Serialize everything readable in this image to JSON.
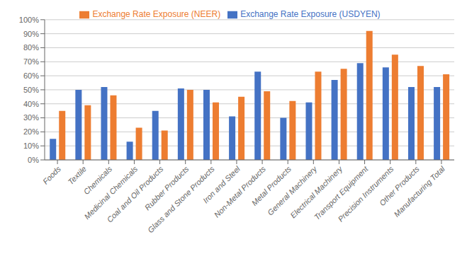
{
  "chart_data": {
    "type": "bar",
    "categories": [
      "Foods",
      "Textile",
      "Chemicals",
      "Medicinal Chemicals",
      "Coal and Oil Products",
      "Rubber Products",
      "Glass and Stone Products",
      "Iron and Steel",
      "Non-Metal Products",
      "Metal Products",
      "General Machinery",
      "Electrical Machinery",
      "Transport Equipment",
      "Precision Instruments",
      "Other Products",
      "Manufacturing Total"
    ],
    "series": [
      {
        "name": "Exchange Rate Exposure (USDYEN)",
        "color": "#4472C4",
        "values": [
          15,
          50,
          52,
          13,
          35,
          51,
          50,
          31,
          63,
          30,
          41,
          57,
          69,
          66,
          52,
          52
        ]
      },
      {
        "name": "Exchange Rate Exposure (NEER)",
        "color": "#ED7D31",
        "values": [
          35,
          39,
          46,
          23,
          21,
          50,
          41,
          45,
          49,
          42,
          63,
          65,
          92,
          75,
          67,
          61
        ]
      }
    ],
    "ylim": [
      0,
      100
    ],
    "yticks": [
      {
        "value": 0,
        "label": "0%"
      },
      {
        "value": 10,
        "label": "10%"
      },
      {
        "value": 20,
        "label": "20%"
      },
      {
        "value": 30,
        "label": "30%"
      },
      {
        "value": 40,
        "label": "40%"
      },
      {
        "value": 50,
        "label": "50%"
      },
      {
        "value": 60,
        "label": "60%"
      },
      {
        "value": 70,
        "label": "70%"
      },
      {
        "value": 80,
        "label": "80%"
      },
      {
        "value": 90,
        "label": "90%"
      },
      {
        "value": 100,
        "label": "100%"
      }
    ],
    "grid": true,
    "legend": "top"
  }
}
